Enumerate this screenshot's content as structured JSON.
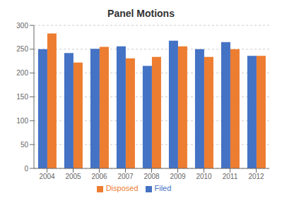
{
  "chart_data": {
    "type": "bar",
    "title": "Panel Motions",
    "categories": [
      "2004",
      "2005",
      "2006",
      "2007",
      "2008",
      "2009",
      "2010",
      "2011",
      "2012"
    ],
    "series": [
      {
        "name": "Filed",
        "color": "#4472C4",
        "values": [
          250,
          242,
          251,
          256,
          215,
          268,
          250,
          265,
          236
        ]
      },
      {
        "name": "Disposed",
        "color": "#ED7D31",
        "values": [
          283,
          222,
          255,
          231,
          234,
          256,
          234,
          250,
          236
        ]
      }
    ],
    "ylim": [
      0,
      300
    ],
    "yticks": [
      0,
      50,
      100,
      150,
      200,
      250,
      300
    ],
    "grid": true,
    "legend": "bottom"
  }
}
